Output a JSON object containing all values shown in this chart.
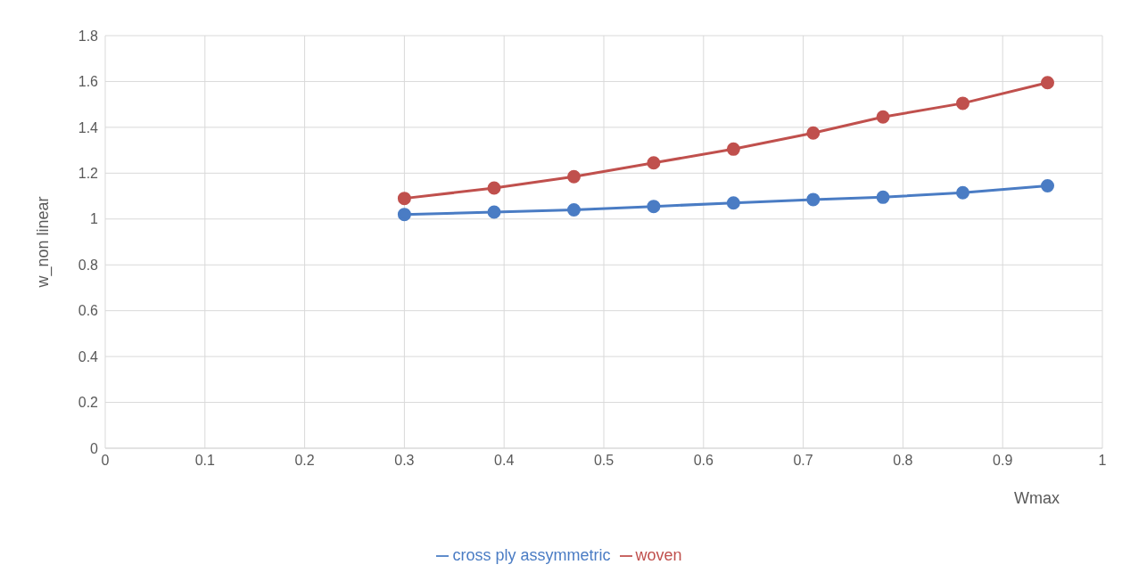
{
  "chart_data": {
    "type": "line",
    "xlabel": "Wmax",
    "ylabel": "w_non linear",
    "x": [
      0.3,
      0.39,
      0.47,
      0.55,
      0.63,
      0.71,
      0.78,
      0.86,
      0.945
    ],
    "series": [
      {
        "name": "cross ply assymmetric",
        "color": "#4a7cc4",
        "values": [
          1.02,
          1.03,
          1.04,
          1.055,
          1.07,
          1.085,
          1.095,
          1.115,
          1.145
        ]
      },
      {
        "name": "woven",
        "color": "#c0504d",
        "values": [
          1.09,
          1.135,
          1.185,
          1.245,
          1.305,
          1.375,
          1.445,
          1.505,
          1.595
        ]
      }
    ],
    "xlim": [
      0,
      1
    ],
    "xticks": [
      0,
      0.1,
      0.2,
      0.3,
      0.4,
      0.5,
      0.6,
      0.7,
      0.8,
      0.9,
      1
    ],
    "ylim": [
      0,
      1.8
    ],
    "yticks": [
      0,
      0.2,
      0.4,
      0.6,
      0.8,
      1,
      1.2,
      1.4,
      1.6,
      1.8
    ],
    "grid": true,
    "legend": "bottom",
    "marker": "circle",
    "line_style": "solid"
  }
}
